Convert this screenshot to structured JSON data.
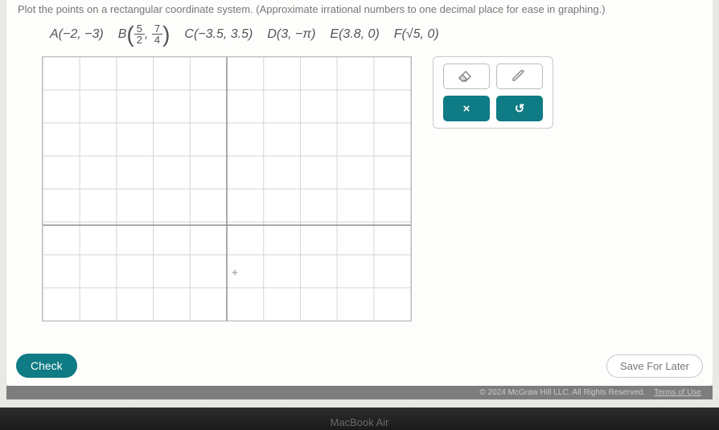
{
  "instructions": "Plot the points on a rectangular coordinate system. (Approximate irrational numbers to one decimal place for ease in graphing.)",
  "points": {
    "A": {
      "letter": "A",
      "text": "(−2, −3)"
    },
    "B": {
      "letter": "B",
      "frac1_n": "5",
      "frac1_d": "2",
      "frac2_n": "7",
      "frac2_d": "4"
    },
    "C": {
      "letter": "C",
      "text": "(−3.5, 3.5)"
    },
    "D": {
      "letter": "D",
      "text": "(3, −π)"
    },
    "E": {
      "letter": "E",
      "text": "(3.8, 0)"
    },
    "F": {
      "letter": "F",
      "text": "(√5, 0)"
    }
  },
  "graph": {
    "grid_color": "#d5d5d2",
    "axis_color": "#8f8f8b",
    "bg": "#ffffff",
    "cols": 10,
    "rows": 8,
    "origin_col": 5,
    "origin_row": 5.1,
    "tick_label": "+"
  },
  "tools": {
    "eraser_icon": "eraser",
    "pencil_icon": "pencil",
    "clear_label": "×",
    "undo_label": "↺"
  },
  "buttons": {
    "check": "Check",
    "save": "Save For Later"
  },
  "footer": {
    "copyright": "© 2024 McGraw Hill LLC. All Rights Reserved.",
    "terms": "Terms of Use"
  },
  "device_label": "MacBook Air",
  "colors": {
    "teal": "#0f7b84",
    "panel_bg": "#fdfdfb",
    "body_bg": "#e8e8e5"
  }
}
